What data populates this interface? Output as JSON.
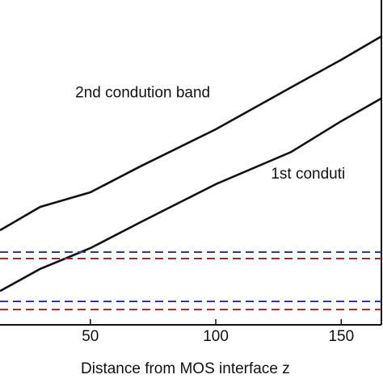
{
  "chart_data": {
    "type": "line",
    "x_label": "Distance from MOS interface z",
    "annotations": [
      {
        "text": "2nd condution band",
        "x": 44,
        "y": 70
      },
      {
        "text": "1st conduti",
        "x": 122,
        "y": 45
      }
    ],
    "xlim": [
      14,
      166
    ],
    "ylim": [
      0,
      100
    ],
    "xticks": [
      50,
      100,
      150
    ],
    "series": [
      {
        "color": "#111111",
        "dash": false,
        "x": [
          14,
          30,
          50,
          70,
          100,
          130,
          150,
          166
        ],
        "values": [
          29.1,
          36.3,
          40.8,
          48.8,
          60.2,
          73.1,
          81.6,
          88.8
        ]
      },
      {
        "color": "#111111",
        "dash": false,
        "x": [
          14,
          30,
          40,
          50,
          70,
          100,
          130,
          150,
          166
        ],
        "values": [
          10.4,
          17.2,
          20.4,
          23.6,
          31.6,
          43.3,
          53.2,
          62.7,
          69.7
        ]
      },
      {
        "color": "#2b3a9e",
        "dash": true,
        "x": [
          14,
          166
        ],
        "values": [
          22.4,
          22.4
        ]
      },
      {
        "color": "#9e2b2b",
        "dash": true,
        "x": [
          14,
          166
        ],
        "values": [
          20.4,
          20.4
        ]
      },
      {
        "color": "#2b3a9e",
        "dash": true,
        "x": [
          14,
          166
        ],
        "values": [
          7.2,
          7.2
        ]
      },
      {
        "color": "#9e2b2b",
        "dash": true,
        "x": [
          14,
          166
        ],
        "values": [
          4.7,
          4.7
        ]
      }
    ]
  }
}
